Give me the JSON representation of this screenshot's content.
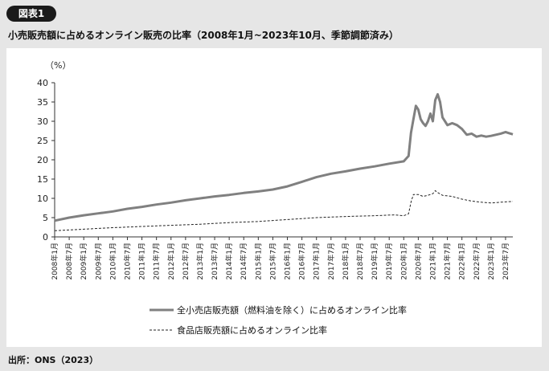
{
  "figure_label": "図表1",
  "source": "出所：ONS（2023）",
  "chart_data": {
    "type": "line",
    "title": "小売販売額に占めるオンライン販売の比率（2008年1月~2023年10月、季節調節済み）",
    "ylabel": "（%）",
    "xlabel": "",
    "ylim": [
      0,
      40
    ],
    "yticks": [
      0,
      5,
      10,
      15,
      20,
      25,
      30,
      35,
      40
    ],
    "grid": false,
    "legend_position": "bottom-center",
    "x_start": "2008-01",
    "x_end": "2023-10",
    "x_tick_labels": [
      "2008年1月",
      "2008年7月",
      "2009年1月",
      "2009年7月",
      "2010年1月",
      "2010年7月",
      "2011年1月",
      "2011年7月",
      "2012年1月",
      "2012年7月",
      "2013年1月",
      "2013年7月",
      "2014年1月",
      "2014年7月",
      "2015年1月",
      "2015年7月",
      "2016年1月",
      "2016年7月",
      "2017年1月",
      "2017年7月",
      "2018年1月",
      "2018年7月",
      "2019年1月",
      "2019年7月",
      "2020年1月",
      "2020年7月",
      "2021年1月",
      "2021年7月",
      "2022年1月",
      "2022年7月",
      "2023年1月",
      "2023年7月"
    ],
    "series": [
      {
        "name": "全小売店販売額（燃料油を除く）に占めるオンライン比率",
        "style": "solid-thick",
        "color": "#808080",
        "points": [
          [
            0,
            4.2
          ],
          [
            6,
            5.0
          ],
          [
            12,
            5.6
          ],
          [
            18,
            6.1
          ],
          [
            24,
            6.6
          ],
          [
            30,
            7.3
          ],
          [
            36,
            7.8
          ],
          [
            42,
            8.4
          ],
          [
            48,
            8.9
          ],
          [
            54,
            9.5
          ],
          [
            60,
            10.0
          ],
          [
            66,
            10.5
          ],
          [
            72,
            10.9
          ],
          [
            78,
            11.4
          ],
          [
            84,
            11.8
          ],
          [
            90,
            12.3
          ],
          [
            96,
            13.1
          ],
          [
            102,
            14.3
          ],
          [
            108,
            15.5
          ],
          [
            114,
            16.4
          ],
          [
            120,
            17.0
          ],
          [
            126,
            17.7
          ],
          [
            132,
            18.3
          ],
          [
            138,
            19.0
          ],
          [
            144,
            19.6
          ],
          [
            146,
            21.0
          ],
          [
            147,
            27.0
          ],
          [
            148,
            30.5
          ],
          [
            149,
            34.0
          ],
          [
            150,
            33.0
          ],
          [
            151,
            30.5
          ],
          [
            152,
            29.5
          ],
          [
            153,
            28.8
          ],
          [
            154,
            30.0
          ],
          [
            155,
            32.0
          ],
          [
            156,
            30.0
          ],
          [
            157,
            35.5
          ],
          [
            158,
            37.0
          ],
          [
            159,
            35.0
          ],
          [
            160,
            31.0
          ],
          [
            161,
            30.0
          ],
          [
            162,
            29.0
          ],
          [
            164,
            29.5
          ],
          [
            166,
            29.0
          ],
          [
            168,
            28.0
          ],
          [
            170,
            26.5
          ],
          [
            172,
            26.8
          ],
          [
            174,
            26.0
          ],
          [
            176,
            26.3
          ],
          [
            178,
            26.0
          ],
          [
            180,
            26.2
          ],
          [
            182,
            26.5
          ],
          [
            184,
            26.8
          ],
          [
            186,
            27.2
          ],
          [
            187,
            27.0
          ],
          [
            189,
            26.6
          ]
        ]
      },
      {
        "name": "食品店販売額に占めるオンライン比率",
        "style": "dashed",
        "color": "#222222",
        "points": [
          [
            0,
            1.6
          ],
          [
            12,
            2.0
          ],
          [
            24,
            2.4
          ],
          [
            36,
            2.7
          ],
          [
            48,
            3.0
          ],
          [
            60,
            3.3
          ],
          [
            72,
            3.7
          ],
          [
            84,
            4.0
          ],
          [
            96,
            4.5
          ],
          [
            108,
            5.0
          ],
          [
            120,
            5.3
          ],
          [
            132,
            5.5
          ],
          [
            140,
            5.7
          ],
          [
            144,
            5.5
          ],
          [
            146,
            6.0
          ],
          [
            147,
            9.0
          ],
          [
            148,
            11.0
          ],
          [
            150,
            11.0
          ],
          [
            152,
            10.5
          ],
          [
            154,
            10.8
          ],
          [
            156,
            11.2
          ],
          [
            157,
            12.0
          ],
          [
            158,
            11.5
          ],
          [
            160,
            10.8
          ],
          [
            164,
            10.5
          ],
          [
            168,
            9.8
          ],
          [
            172,
            9.3
          ],
          [
            176,
            9.0
          ],
          [
            180,
            8.8
          ],
          [
            184,
            9.0
          ],
          [
            189,
            9.2
          ]
        ]
      }
    ]
  }
}
